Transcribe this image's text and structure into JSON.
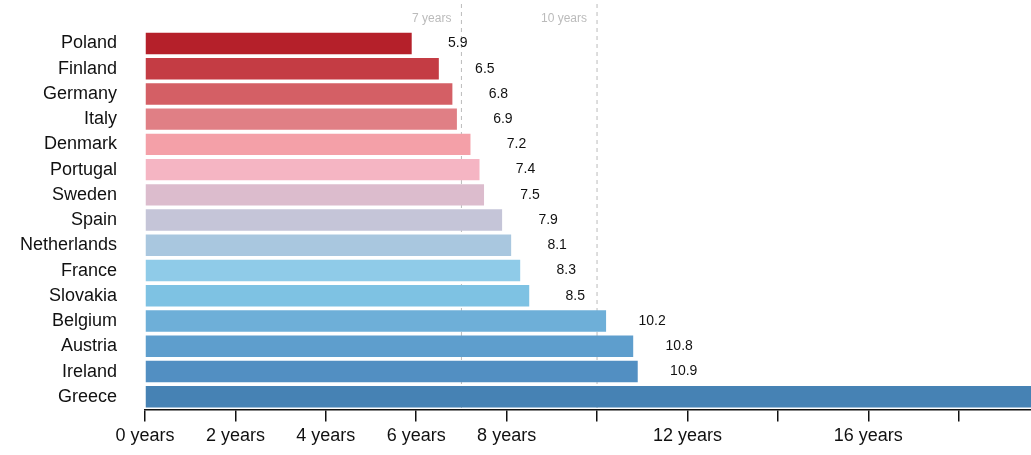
{
  "chart_data": {
    "type": "bar",
    "orientation": "horizontal",
    "categories": [
      "Poland",
      "Finland",
      "Germany",
      "Italy",
      "Denmark",
      "Portugal",
      "Sweden",
      "Spain",
      "Netherlands",
      "France",
      "Slovakia",
      "Belgium",
      "Austria",
      "Ireland",
      "Greece"
    ],
    "values": [
      5.9,
      6.5,
      6.8,
      6.9,
      7.2,
      7.4,
      7.5,
      7.9,
      8.1,
      8.3,
      8.5,
      10.2,
      10.8,
      10.9,
      19.6
    ],
    "value_labels": [
      "5.9",
      "6.5",
      "6.8",
      "6.9",
      "7.2",
      "7.4",
      "7.5",
      "7.9",
      "8.1",
      "8.3",
      "8.5",
      "10.2",
      "10.8",
      "10.9",
      null
    ],
    "colors": [
      "#b5202a",
      "#c43c44",
      "#d45f65",
      "#e07f85",
      "#f4a0a8",
      "#f5b5c3",
      "#dcbccd",
      "#c5c5d8",
      "#a9c7df",
      "#8fcbe8",
      "#7ec2e3",
      "#6eafd8",
      "#5e9ecd",
      "#528fc2",
      "#4682b4"
    ],
    "xlim": [
      0,
      19.6
    ],
    "xticks": [
      {
        "value": 0,
        "label": "0 years"
      },
      {
        "value": 2,
        "label": "2 years"
      },
      {
        "value": 4,
        "label": "4 years"
      },
      {
        "value": 6,
        "label": "6 years"
      },
      {
        "value": 8,
        "label": "8 years"
      },
      {
        "value": 10,
        "label": null
      },
      {
        "value": 12,
        "label": "12 years"
      },
      {
        "value": 14,
        "label": null
      },
      {
        "value": 16,
        "label": "16 years"
      },
      {
        "value": 18,
        "label": null
      }
    ],
    "ref_lines": [
      {
        "axis": "x",
        "value": 7,
        "label": "7 years",
        "color": "#bbbbbb",
        "line_style": "dashed"
      },
      {
        "axis": "x",
        "value": 10,
        "label": "10 years",
        "color": "#bbbbbb",
        "line_style": "dashed"
      }
    ],
    "grid": false,
    "legend": false
  }
}
